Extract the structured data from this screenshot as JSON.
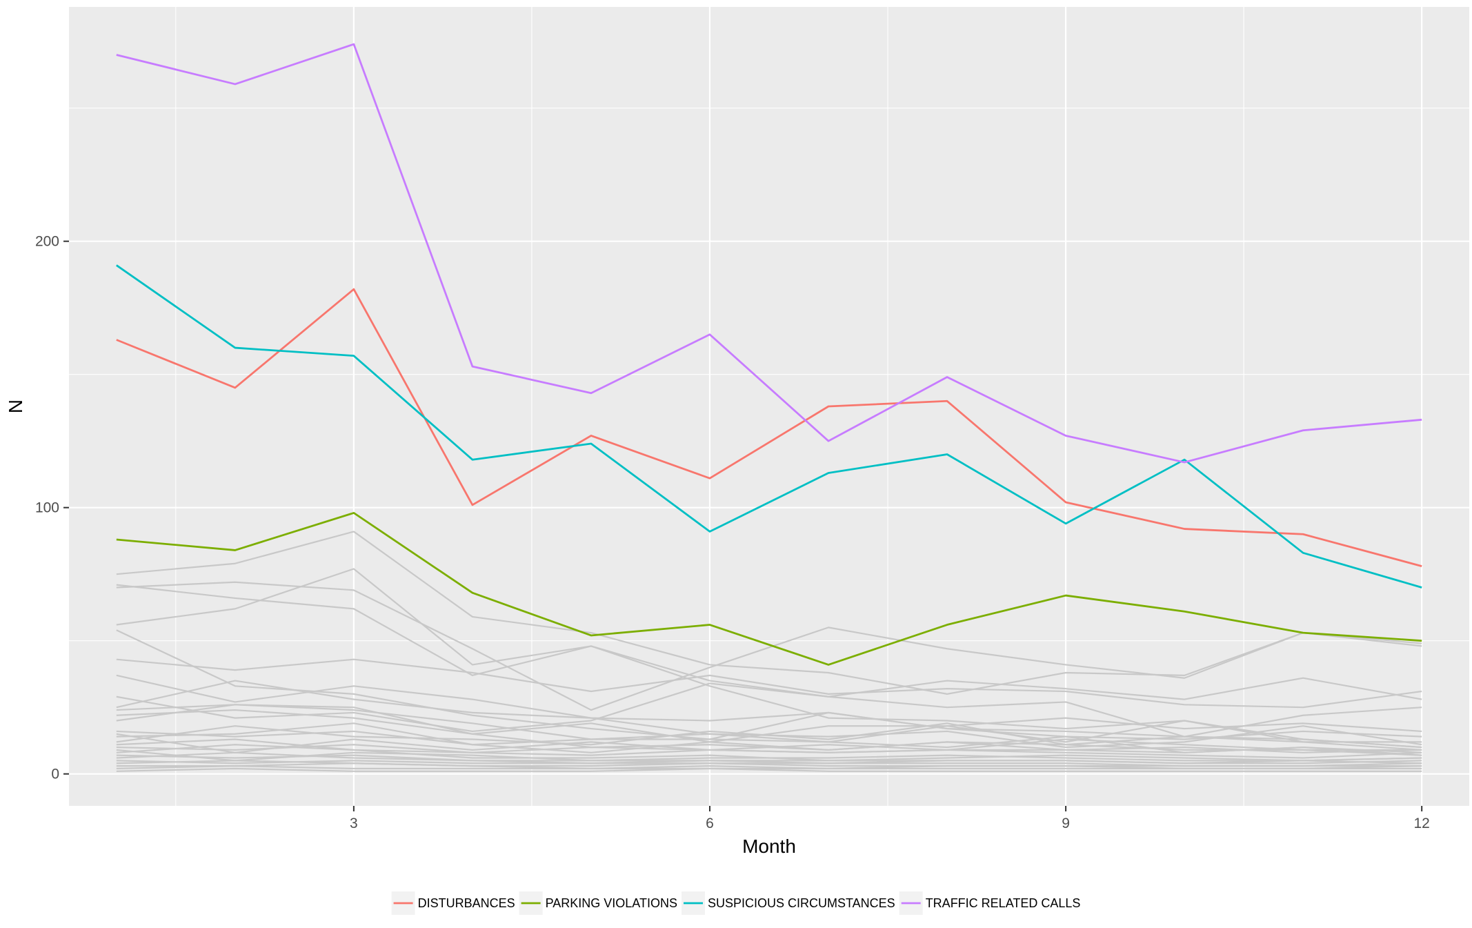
{
  "chart_data": {
    "type": "line",
    "title": "",
    "xlabel": "Month",
    "ylabel": "N",
    "xlim": [
      0.6,
      12.4
    ],
    "ylim": [
      -12,
      288
    ],
    "x_ticks": [
      3,
      6,
      9,
      12
    ],
    "y_ticks": [
      0,
      100,
      200
    ],
    "grid": true,
    "legend_position": "bottom",
    "x": [
      1,
      2,
      3,
      4,
      5,
      6,
      7,
      8,
      9,
      10,
      11,
      12
    ],
    "series": [
      {
        "name": "DISTURBANCES",
        "color": "#F8766D",
        "values": [
          163,
          145,
          182,
          101,
          127,
          111,
          138,
          140,
          102,
          92,
          90,
          78
        ]
      },
      {
        "name": "PARKING VIOLATIONS",
        "color": "#7CAE00",
        "values": [
          88,
          84,
          98,
          68,
          52,
          56,
          41,
          56,
          67,
          61,
          53,
          50
        ]
      },
      {
        "name": "SUSPICIOUS CIRCUMSTANCES",
        "color": "#00BFC4",
        "values": [
          191,
          160,
          157,
          118,
          124,
          91,
          113,
          120,
          94,
          118,
          83,
          70
        ]
      },
      {
        "name": "TRAFFIC RELATED CALLS",
        "color": "#C77CFF",
        "values": [
          270,
          259,
          274,
          153,
          143,
          165,
          125,
          149,
          127,
          117,
          129,
          133
        ]
      }
    ],
    "background_series_color": "#C8C8C8",
    "background_series": [
      [
        75,
        79,
        91,
        59,
        53,
        41,
        38,
        30,
        38,
        37,
        53,
        48
      ],
      [
        70,
        72,
        69,
        47,
        24,
        40,
        55,
        47,
        41,
        36,
        53,
        49
      ],
      [
        71,
        66,
        62,
        37,
        48,
        33,
        21,
        20,
        17,
        20,
        13,
        10
      ],
      [
        56,
        62,
        77,
        41,
        48,
        35,
        29,
        35,
        32,
        28,
        36,
        28
      ],
      [
        54,
        33,
        30,
        22,
        17,
        13,
        23,
        17,
        14,
        13,
        16,
        14
      ],
      [
        43,
        39,
        43,
        38,
        31,
        37,
        30,
        32,
        31,
        26,
        25,
        31
      ],
      [
        37,
        27,
        33,
        28,
        21,
        20,
        23,
        17,
        16,
        14,
        13,
        10
      ],
      [
        29,
        21,
        23,
        16,
        20,
        34,
        29,
        25,
        27,
        14,
        22,
        25
      ],
      [
        25,
        35,
        28,
        23,
        21,
        15,
        12,
        18,
        21,
        17,
        19,
        16
      ],
      [
        24,
        26,
        24,
        19,
        13,
        15,
        14,
        16,
        10,
        12,
        18,
        11
      ],
      [
        22,
        24,
        21,
        15,
        10,
        11,
        9,
        12,
        9,
        8,
        10,
        7
      ],
      [
        20,
        26,
        25,
        15,
        19,
        12,
        18,
        18,
        12,
        20,
        12,
        9
      ],
      [
        16,
        14,
        16,
        11,
        13,
        13,
        12,
        10,
        14,
        8,
        10,
        8
      ],
      [
        14,
        15,
        19,
        11,
        8,
        12,
        9,
        12,
        11,
        9,
        9,
        7
      ],
      [
        11,
        13,
        9,
        8,
        10,
        9,
        11,
        9,
        9,
        10,
        8,
        9
      ],
      [
        10,
        9,
        11,
        8,
        7,
        9,
        8,
        9,
        8,
        7,
        6,
        8
      ],
      [
        9,
        5,
        8,
        7,
        5,
        6,
        6,
        7,
        6,
        5,
        5,
        6
      ],
      [
        8,
        11,
        9,
        6,
        6,
        7,
        5,
        6,
        7,
        6,
        5,
        6
      ],
      [
        7,
        6,
        7,
        5,
        5,
        5,
        5,
        5,
        5,
        4,
        4,
        5
      ],
      [
        6,
        8,
        6,
        5,
        4,
        5,
        4,
        5,
        5,
        4,
        5,
        4
      ],
      [
        5,
        4,
        5,
        4,
        4,
        4,
        4,
        4,
        4,
        3,
        3,
        4
      ],
      [
        4,
        5,
        4,
        3,
        3,
        4,
        3,
        3,
        3,
        3,
        3,
        3
      ],
      [
        3,
        3,
        4,
        3,
        2,
        3,
        2,
        3,
        3,
        2,
        2,
        3
      ],
      [
        2,
        3,
        2,
        2,
        2,
        2,
        2,
        2,
        2,
        2,
        2,
        2
      ],
      [
        1,
        2,
        1,
        1,
        1,
        2,
        1,
        1,
        1,
        1,
        1,
        1
      ],
      [
        12,
        18,
        14,
        13,
        11,
        16,
        13,
        19,
        11,
        14,
        12,
        12
      ],
      [
        15,
        8,
        13,
        9,
        12,
        9,
        8,
        9,
        13,
        11,
        9,
        9
      ]
    ]
  }
}
